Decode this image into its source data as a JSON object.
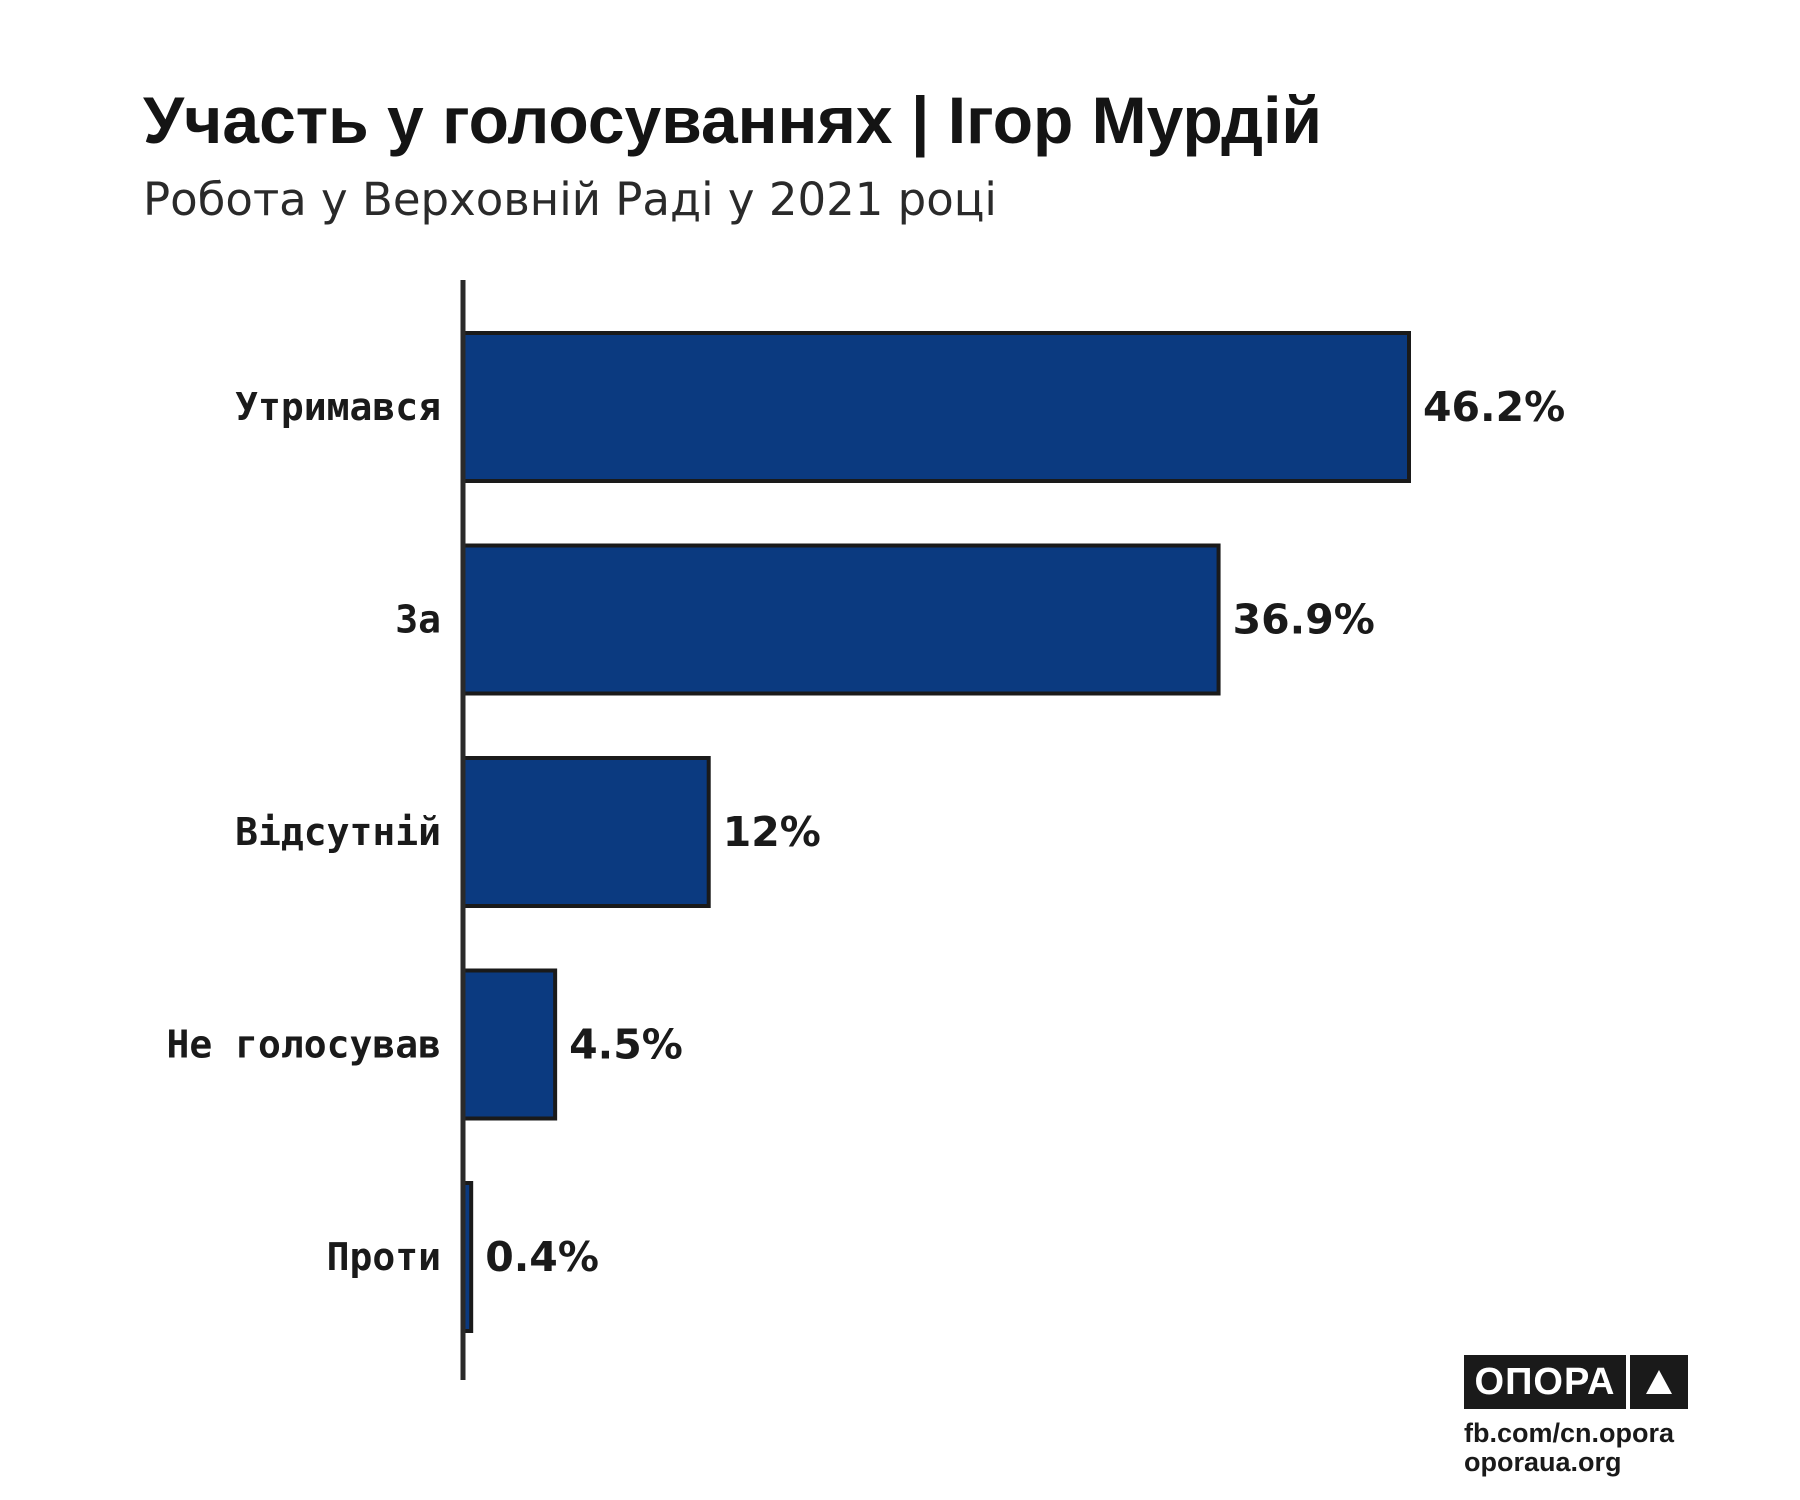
{
  "header": {
    "title": "Участь у голосуваннях | Ігор Мурдій",
    "subtitle": "Робота у Верховній Раді у 2021 році"
  },
  "chart_data": {
    "type": "bar",
    "orientation": "horizontal",
    "title": "Участь у голосуваннях | Ігор Мурдій",
    "subtitle": "Робота у Верховній Раді у 2021 році",
    "categories": [
      "Утримався",
      "За",
      "Відсутній",
      "Не голосував",
      "Проти"
    ],
    "values": [
      46.2,
      36.9,
      12,
      4.5,
      0.4
    ],
    "value_labels": [
      "46.2%",
      "36.9%",
      "12%",
      "4.5%",
      "0.4%"
    ],
    "xlabel": "",
    "ylabel": "",
    "xlim": [
      0,
      46.2
    ],
    "grid": false,
    "legend": "none",
    "bar_color": "#0b3a80",
    "bar_edge_color": "#1a1a1a"
  },
  "branding": {
    "logo_text": "ОПОРА",
    "logo_icon": "triangle-icon",
    "links": [
      "fb.com/cn.opora",
      "oporaua.org"
    ]
  }
}
